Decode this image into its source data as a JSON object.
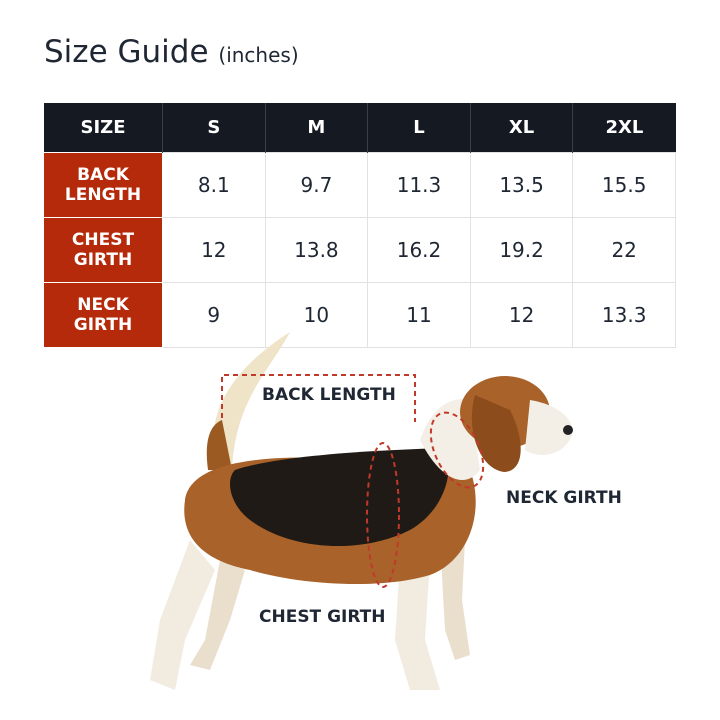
{
  "title": "Size Guide",
  "unit": "(inches)",
  "table": {
    "corner": "SIZE",
    "sizes": [
      "S",
      "M",
      "L",
      "XL",
      "2XL"
    ],
    "rows": [
      {
        "label": [
          "BACK",
          "LENGTH"
        ],
        "values": [
          "8.1",
          "9.7",
          "11.3",
          "13.5",
          "15.5"
        ]
      },
      {
        "label": [
          "CHEST",
          "GIRTH"
        ],
        "values": [
          "12",
          "13.8",
          "16.2",
          "19.2",
          "22"
        ]
      },
      {
        "label": [
          "NECK",
          "GIRTH"
        ],
        "values": [
          "9",
          "10",
          "11",
          "12",
          "13.3"
        ]
      }
    ]
  },
  "diagram": {
    "back_length": "BACK LENGTH",
    "neck_girth": "NECK GIRTH",
    "chest_girth": "CHEST GIRTH"
  },
  "colors": {
    "header": "#141922",
    "row_label": "#b52a0a",
    "dash": "#c0392b"
  }
}
